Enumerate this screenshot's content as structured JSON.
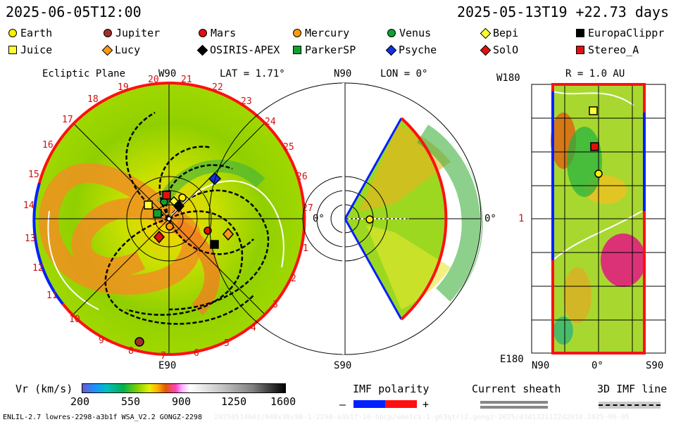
{
  "header": {
    "left_time": "2025-06-05T12:00",
    "right_time": "2025-05-13T19 +22.73 days"
  },
  "legend": [
    {
      "label": "Earth",
      "shape": "circle",
      "color": "#ffee00"
    },
    {
      "label": "Jupiter",
      "shape": "circle",
      "color": "#a0302a"
    },
    {
      "label": "Mars",
      "shape": "circle",
      "color": "#e01010"
    },
    {
      "label": "Mercury",
      "shape": "circle",
      "color": "#ff9a10"
    },
    {
      "label": "Venus",
      "shape": "circle",
      "color": "#10a030"
    },
    {
      "label": "Bepi",
      "shape": "diamond",
      "color": "#ffff30"
    },
    {
      "label": "EuropaClippr",
      "shape": "square",
      "color": "#000000"
    },
    {
      "label": "Juice",
      "shape": "square",
      "color": "#ffff30"
    },
    {
      "label": "Lucy",
      "shape": "diamond",
      "color": "#ff9a10"
    },
    {
      "label": "OSIRIS-APEX",
      "shape": "diamond",
      "color": "#000000"
    },
    {
      "label": "ParkerSP",
      "shape": "square",
      "color": "#10a030"
    },
    {
      "label": "Psyche",
      "shape": "diamond",
      "color": "#1030e0"
    },
    {
      "label": "SolO",
      "shape": "diamond",
      "color": "#e01010"
    },
    {
      "label": "Stereo_A",
      "shape": "square",
      "color": "#e01010"
    }
  ],
  "ecliptic": {
    "title": "Ecliptic Plane",
    "top_label": "W90",
    "bottom_label": "E90",
    "right_label": "0°",
    "lat_label": "LAT = 1.71°",
    "rotations": [
      "19",
      "20",
      "21",
      "22",
      "23",
      "24",
      "25",
      "26",
      "27",
      "1",
      "2",
      "3",
      "4",
      "5",
      "6",
      "7",
      "8",
      "9",
      "10",
      "11",
      "12",
      "13",
      "14",
      "15",
      "16",
      "17",
      "18"
    ]
  },
  "meridional": {
    "top_label": "N90",
    "bottom_label": "S90",
    "right_label": "0°",
    "lon_label": "LON = 0°"
  },
  "rpanel": {
    "title": "R = 1.0 AU",
    "top_label": "W180",
    "bottom_label": "E180",
    "mid_label": "1",
    "x_left": "N90",
    "x_mid": "0°",
    "x_right": "S90"
  },
  "colorbar": {
    "title": "Vr (km/s)",
    "ticks": [
      "200",
      "550",
      "900",
      "1250",
      "1600"
    ]
  },
  "imf": {
    "title": "IMF polarity",
    "minus": "–",
    "plus": "+",
    "neg_color": "#0020ff",
    "pos_color": "#ff1010"
  },
  "current_sheath": {
    "title": "Current sheath"
  },
  "imf_line": {
    "title": "3D IMF line"
  },
  "footer": {
    "left": "ENLIL-2.7 lowres-2298-a3b1f WSA_V2.2 GONGZ-2298",
    "right": "20250514602/640x30x90-1-2298-a3b1f-16-hbcp/ume1cs-1-g63qtrl2.gongz-2025/d3d1321122d2010.2025-06-05"
  }
}
